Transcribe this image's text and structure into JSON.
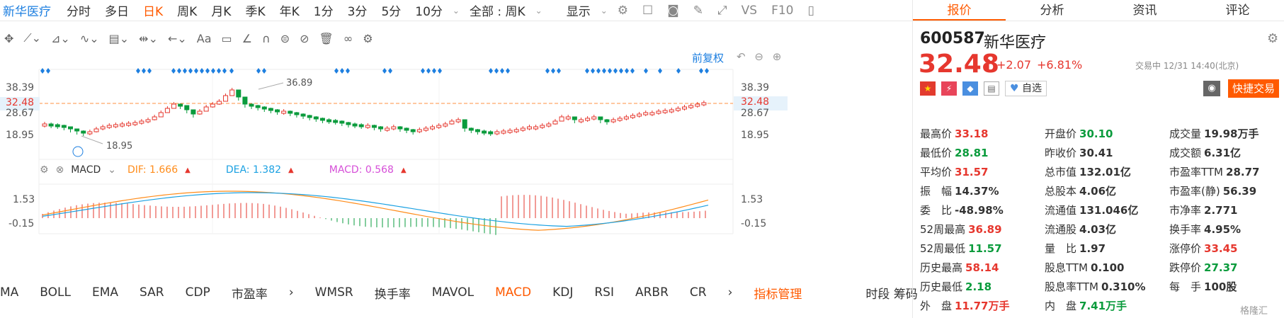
{
  "topbar": {
    "symbol": "新华医疗",
    "periods": [
      {
        "label": "分时",
        "active": false
      },
      {
        "label": "多日",
        "active": false
      },
      {
        "label": "日K",
        "active": true
      },
      {
        "label": "周K",
        "active": false
      },
      {
        "label": "月K",
        "active": false
      },
      {
        "label": "季K",
        "active": false
      },
      {
        "label": "年K",
        "active": false
      },
      {
        "label": "1分",
        "active": false
      },
      {
        "label": "3分",
        "active": false
      },
      {
        "label": "5分",
        "active": false
      },
      {
        "label": "10分",
        "active": false
      }
    ],
    "scope": "全部 : 周K",
    "display": "显示",
    "vs_label": "VS",
    "f10_label": "F10"
  },
  "chart_area": {
    "adjust_label": "前复权",
    "price_axis": [
      "38.39",
      "32.48",
      "28.67",
      "18.95"
    ],
    "current_price_tag": "32.48",
    "high_annotation": "36.89",
    "low_annotation": "18.95",
    "macd_header": {
      "name": "MACD",
      "dif": "DIF: 1.666",
      "dea": "DEA: 1.382",
      "macd": "MACD: 0.568"
    },
    "macd_axis": [
      "1.53",
      "-0.15"
    ]
  },
  "indicator_bar": {
    "items": [
      {
        "label": "MA",
        "active": false
      },
      {
        "label": "BOLL",
        "active": false
      },
      {
        "label": "EMA",
        "active": false
      },
      {
        "label": "SAR",
        "active": false
      },
      {
        "label": "CDP",
        "active": false
      },
      {
        "label": "市盈率",
        "active": false
      },
      {
        "label": "WMSR",
        "active": false
      },
      {
        "label": "换手率",
        "active": false
      },
      {
        "label": "MAVOL",
        "active": false
      },
      {
        "label": "MACD",
        "active": true
      },
      {
        "label": "KDJ",
        "active": false
      },
      {
        "label": "RSI",
        "active": false
      },
      {
        "label": "ARBR",
        "active": false
      },
      {
        "label": "CR",
        "active": false
      }
    ],
    "manage": "指标管理",
    "right": "时段 筹码"
  },
  "quote": {
    "tabs": [
      "报价",
      "分析",
      "资讯",
      "评论"
    ],
    "code": "600587",
    "name": "新华医疗",
    "price": "32.48",
    "change": "+2.07",
    "change_pct": "+6.81%",
    "status": "交易中 12/31 14:40(北京)",
    "watch": "自选",
    "trade": "快捷交易",
    "fields": [
      {
        "label": "最高价",
        "value": "33.18",
        "color": "red"
      },
      {
        "label": "开盘价",
        "value": "30.10",
        "color": "green"
      },
      {
        "label": "成交量",
        "value": "19.98万手",
        "color": ""
      },
      {
        "label": "最低价",
        "value": "28.81",
        "color": "green"
      },
      {
        "label": "昨收价",
        "value": "30.41",
        "color": ""
      },
      {
        "label": "成交额",
        "value": "6.31亿",
        "color": ""
      },
      {
        "label": "平均价",
        "value": "31.57",
        "color": "red"
      },
      {
        "label": "总市值",
        "value": "132.01亿",
        "color": ""
      },
      {
        "label": "市盈率TTM",
        "value": "28.77",
        "color": ""
      },
      {
        "label": "振　幅",
        "value": "14.37%",
        "color": ""
      },
      {
        "label": "总股本",
        "value": "4.06亿",
        "color": ""
      },
      {
        "label": "市盈率(静)",
        "value": "56.39",
        "color": ""
      },
      {
        "label": "委　比",
        "value": "-48.98%",
        "color": ""
      },
      {
        "label": "流通值",
        "value": "131.046亿",
        "color": ""
      },
      {
        "label": "市净率",
        "value": "2.771",
        "color": ""
      },
      {
        "label": "52周最高",
        "value": "36.89",
        "color": "red"
      },
      {
        "label": "流通股",
        "value": "4.03亿",
        "color": ""
      },
      {
        "label": "换手率",
        "value": "4.95%",
        "color": ""
      },
      {
        "label": "52周最低",
        "value": "11.57",
        "color": "green"
      },
      {
        "label": "量　比",
        "value": "1.97",
        "color": ""
      },
      {
        "label": "涨停价",
        "value": "33.45",
        "color": "red"
      },
      {
        "label": "历史最高",
        "value": "58.14",
        "color": "red"
      },
      {
        "label": "股息TTM",
        "value": "0.100",
        "color": ""
      },
      {
        "label": "跌停价",
        "value": "27.37",
        "color": "green"
      },
      {
        "label": "历史最低",
        "value": "2.18",
        "color": "green"
      },
      {
        "label": "股息率TTM",
        "value": "0.310%",
        "color": ""
      },
      {
        "label": "每　手",
        "value": "100股",
        "color": ""
      },
      {
        "label": "外　盘",
        "value": "11.77万手",
        "color": "red"
      },
      {
        "label": "内　盘",
        "value": "7.41万手",
        "color": "green"
      },
      {
        "label": "",
        "value": "",
        "color": ""
      }
    ],
    "watermark": "格隆汇"
  }
}
